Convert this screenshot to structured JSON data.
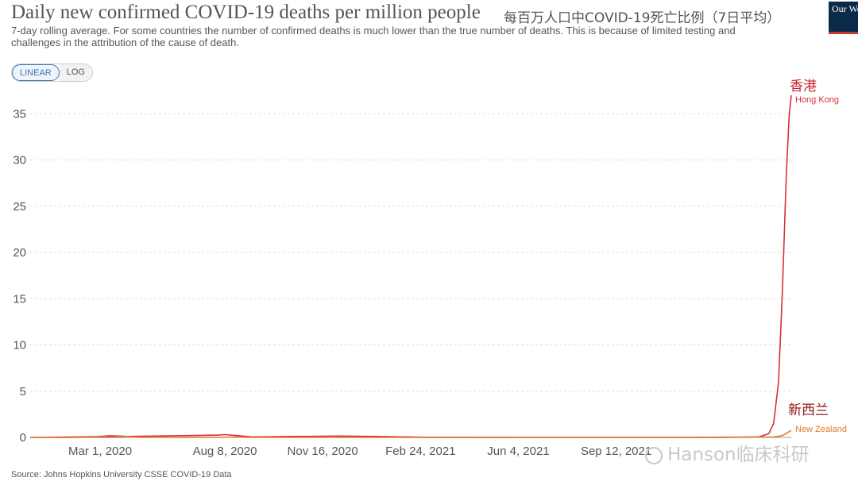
{
  "header": {
    "title": "Daily new confirmed COVID-19 deaths per million people",
    "title_cn": "每百万人口中COVID-19死亡比例（7日平均）",
    "subtitle": "7-day rolling average. For some countries the number of confirmed deaths is much lower than the true number of deaths. This is because of limited testing and challenges in the attribution of the cause of death.",
    "logo_text": "Our World in Data"
  },
  "scale_toggle": {
    "linear_label": "LINEAR",
    "log_label": "LOG",
    "selected": "LINEAR"
  },
  "footer": {
    "source": "Source: Johns Hopkins University CSSE COVID-19 Data"
  },
  "watermark": {
    "text": "Hanson临床科研"
  },
  "colors": {
    "hong_kong": "#d62f3b",
    "new_zealand": "#e07b2a",
    "hong_kong_label_cn": "#c8202c",
    "new_zealand_label_cn": "#8b1a1a",
    "grid": "#dddddd",
    "axis_text": "#555555"
  },
  "chart_data": {
    "type": "line",
    "title": "Daily new confirmed COVID-19 deaths per million people",
    "x_ticks": [
      "Mar 1, 2020",
      "Aug 8, 2020",
      "Nov 16, 2020",
      "Feb 24, 2021",
      "Jun 4, 2021",
      "Sep 12, 2021"
    ],
    "y_ticks": [
      "0",
      "5",
      "10",
      "15",
      "20",
      "25",
      "30",
      "35"
    ],
    "xlim": [
      "2020-01-22",
      "2022-03-10"
    ],
    "ylim": [
      0,
      37
    ],
    "grid": true,
    "series": [
      {
        "name": "Hong Kong",
        "label_cn": "香港",
        "points": [
          [
            "2020-01-22",
            0
          ],
          [
            "2020-03-01",
            0.01
          ],
          [
            "2020-08-01",
            0.25
          ],
          [
            "2020-08-08",
            0.3
          ],
          [
            "2020-08-20",
            0.2
          ],
          [
            "2020-09-05",
            0.05
          ],
          [
            "2020-12-01",
            0.15
          ],
          [
            "2021-01-10",
            0.1
          ],
          [
            "2021-03-01",
            0.02
          ],
          [
            "2021-06-04",
            0
          ],
          [
            "2022-01-01",
            0
          ],
          [
            "2022-02-05",
            0.05
          ],
          [
            "2022-02-15",
            0.4
          ],
          [
            "2022-02-20",
            1.5
          ],
          [
            "2022-02-25",
            6.0
          ],
          [
            "2022-03-01",
            16.0
          ],
          [
            "2022-03-05",
            28.5
          ],
          [
            "2022-03-08",
            35.0
          ],
          [
            "2022-03-10",
            37.0
          ]
        ]
      },
      {
        "name": "New Zealand",
        "label_cn": "新西兰",
        "points": [
          [
            "2020-01-22",
            0
          ],
          [
            "2020-04-01",
            0.1
          ],
          [
            "2020-04-12",
            0.2
          ],
          [
            "2020-04-25",
            0.15
          ],
          [
            "2020-05-10",
            0.02
          ],
          [
            "2020-08-01",
            0
          ],
          [
            "2020-08-20",
            0.05
          ],
          [
            "2020-09-01",
            0
          ],
          [
            "2021-10-01",
            0
          ],
          [
            "2021-12-01",
            0.02
          ],
          [
            "2022-02-20",
            0.05
          ],
          [
            "2022-03-01",
            0.2
          ],
          [
            "2022-03-05",
            0.45
          ],
          [
            "2022-03-10",
            0.75
          ]
        ]
      }
    ]
  }
}
